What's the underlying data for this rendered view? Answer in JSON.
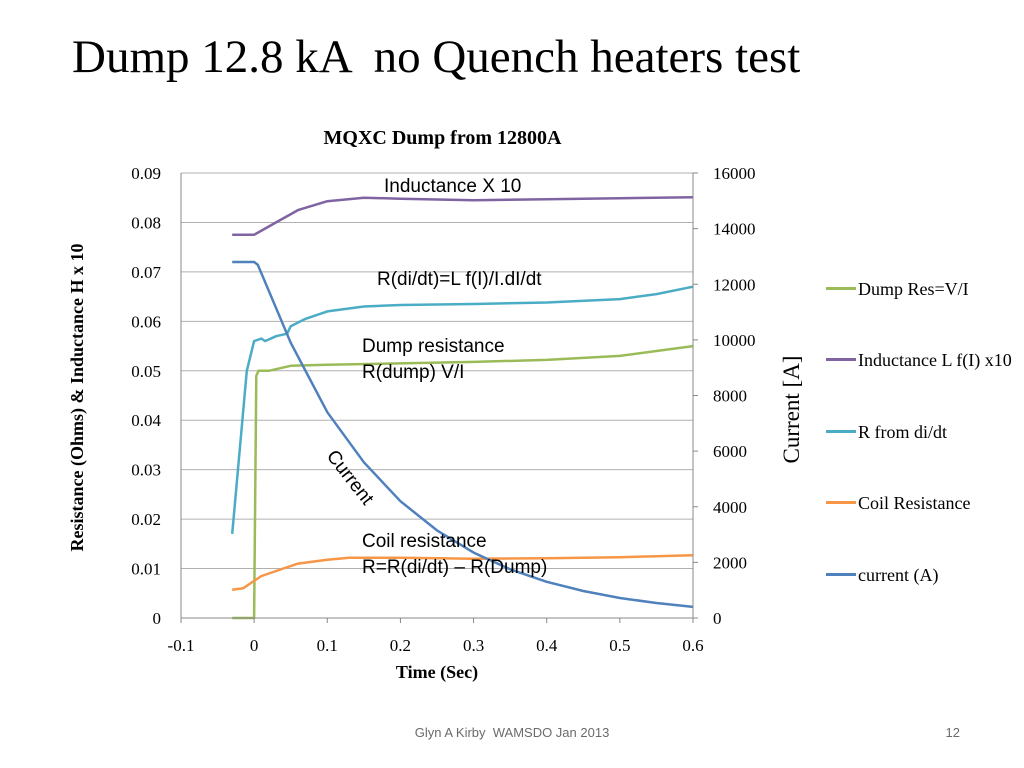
{
  "slide": {
    "title": "Dump 12.8 kA  no Quench heaters test",
    "footer": "Glyn A Kirby  WAMSDO Jan 2013",
    "page_number": "12"
  },
  "chart_data": {
    "type": "line",
    "title": "MQXC Dump from 12800A",
    "xlabel": "Time (Sec)",
    "ylabel_left": "Resistance (Ohms)  & Inductance H x 10",
    "ylabel_right": "Current [A]",
    "xlim": [
      -0.1,
      0.6
    ],
    "ylim_left": [
      0,
      0.09
    ],
    "ylim_right": [
      0,
      16000
    ],
    "x_ticks": [
      "-0.1",
      "0",
      "0.1",
      "0.2",
      "0.3",
      "0.4",
      "0.5",
      "0.6"
    ],
    "y_ticks_left": [
      "0",
      "0.01",
      "0.02",
      "0.03",
      "0.04",
      "0.05",
      "0.06",
      "0.07",
      "0.08",
      "0.09"
    ],
    "y_ticks_right": [
      "0",
      "2000",
      "4000",
      "6000",
      "8000",
      "10000",
      "12000",
      "14000",
      "16000"
    ],
    "grid": "horizontal",
    "legend_position": "right",
    "series": [
      {
        "name": "Dump Res=V/I",
        "color": "#9BBB59",
        "axis": "left",
        "x": [
          -0.03,
          -0.005,
          0.0,
          0.003,
          0.006,
          0.02,
          0.05,
          0.1,
          0.2,
          0.3,
          0.4,
          0.45,
          0.5,
          0.55,
          0.6
        ],
        "y": [
          0.0,
          0.0,
          0.0,
          0.049,
          0.05,
          0.05,
          0.051,
          0.0512,
          0.0515,
          0.0518,
          0.0522,
          0.0526,
          0.053,
          0.054,
          0.055
        ]
      },
      {
        "name": "Inductance L f(I) x10",
        "color": "#8064A2",
        "axis": "left",
        "x": [
          -0.03,
          0.0,
          0.03,
          0.06,
          0.1,
          0.15,
          0.2,
          0.3,
          0.4,
          0.5,
          0.6
        ],
        "y": [
          0.0775,
          0.0775,
          0.08,
          0.0825,
          0.0843,
          0.085,
          0.0848,
          0.0845,
          0.0847,
          0.0849,
          0.0851
        ]
      },
      {
        "name": "R from di/dt",
        "color": "#4BACC6",
        "axis": "left",
        "x": [
          -0.03,
          -0.01,
          0.0,
          0.01,
          0.015,
          0.03,
          0.045,
          0.05,
          0.07,
          0.1,
          0.15,
          0.2,
          0.3,
          0.4,
          0.5,
          0.55,
          0.6
        ],
        "y": [
          0.017,
          0.05,
          0.056,
          0.0565,
          0.056,
          0.057,
          0.0575,
          0.059,
          0.0605,
          0.062,
          0.063,
          0.0633,
          0.0635,
          0.0638,
          0.0645,
          0.0655,
          0.067
        ]
      },
      {
        "name": "Coil Resistance",
        "color": "#F79646",
        "axis": "left",
        "x": [
          -0.03,
          -0.015,
          0.0,
          0.01,
          0.03,
          0.06,
          0.1,
          0.13,
          0.2,
          0.3,
          0.4,
          0.5,
          0.55,
          0.6
        ],
        "y": [
          0.0057,
          0.006,
          0.0075,
          0.0085,
          0.0095,
          0.011,
          0.0118,
          0.0122,
          0.0122,
          0.012,
          0.0121,
          0.0123,
          0.0125,
          0.0127
        ]
      },
      {
        "name": "current (A)",
        "color": "#4F81BD",
        "axis": "right",
        "x": [
          -0.03,
          0.0,
          0.005,
          0.05,
          0.1,
          0.15,
          0.2,
          0.25,
          0.3,
          0.35,
          0.4,
          0.45,
          0.5,
          0.55,
          0.6
        ],
        "y": [
          12800,
          12800,
          12700,
          9900,
          7400,
          5600,
          4200,
          3150,
          2350,
          1750,
          1300,
          970,
          720,
          540,
          400
        ]
      }
    ],
    "annotations": [
      {
        "text": "Inductance X 10"
      },
      {
        "text": "R(di/dt)=L f(I)/I.dI/dt"
      },
      {
        "text": "Dump resistance\nR(dump) V/I"
      },
      {
        "text": "Current"
      },
      {
        "text": "Coil resistance\nR=R(di/dt) – R(Dump)"
      }
    ]
  }
}
